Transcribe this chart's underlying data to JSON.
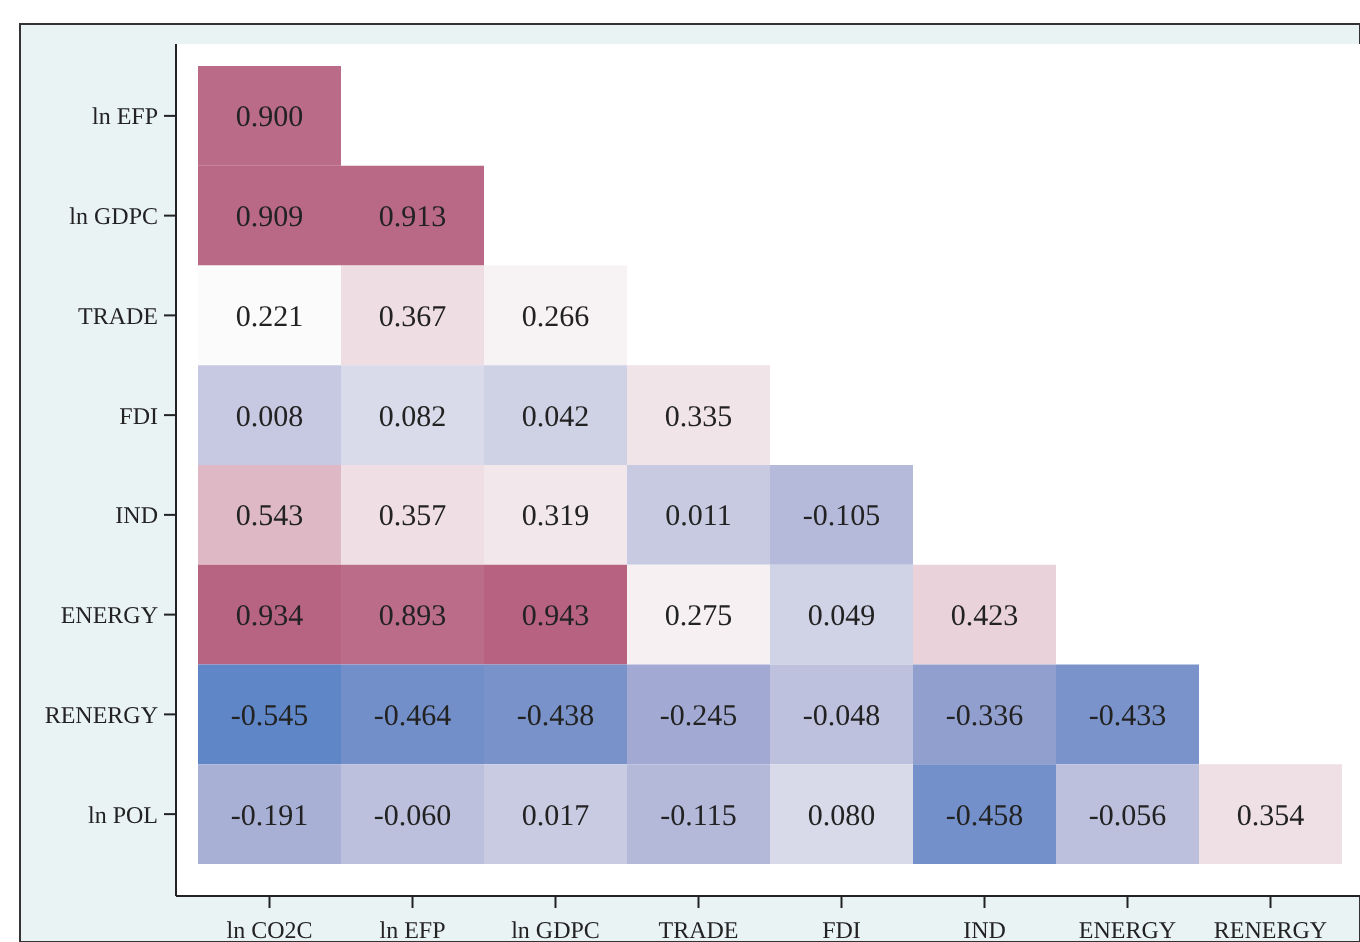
{
  "chart_data": {
    "type": "heatmap",
    "categories": [
      "ln CO2C",
      "ln EFP",
      "ln GDPC",
      "TRADE",
      "FDI",
      "IND",
      "ENERGY",
      "RENERGY"
    ],
    "y_categories": [
      "ln EFP",
      "ln GDPC",
      "TRADE",
      "FDI",
      "IND",
      "ENERGY",
      "RENERGY",
      "ln POL"
    ],
    "cells": [
      [
        0.9,
        null,
        null,
        null,
        null,
        null,
        null,
        null
      ],
      [
        0.909,
        0.913,
        null,
        null,
        null,
        null,
        null,
        null
      ],
      [
        0.221,
        0.367,
        0.266,
        null,
        null,
        null,
        null,
        null
      ],
      [
        0.008,
        0.082,
        0.042,
        0.335,
        null,
        null,
        null,
        null
      ],
      [
        0.543,
        0.357,
        0.319,
        0.011,
        -0.105,
        null,
        null,
        null
      ],
      [
        0.934,
        0.893,
        0.943,
        0.275,
        0.049,
        0.423,
        null,
        null
      ],
      [
        -0.545,
        -0.464,
        -0.438,
        -0.245,
        -0.048,
        -0.336,
        -0.433,
        null
      ],
      [
        -0.191,
        -0.06,
        0.017,
        -0.115,
        0.08,
        -0.458,
        -0.056,
        0.354
      ]
    ],
    "cell_labels": [
      [
        "0.900",
        null,
        null,
        null,
        null,
        null,
        null,
        null
      ],
      [
        "0.909",
        "0.913",
        null,
        null,
        null,
        null,
        null,
        null
      ],
      [
        "0.221",
        "0.367",
        "0.266",
        null,
        null,
        null,
        null,
        null
      ],
      [
        "0.008",
        "0.082",
        "0.042",
        "0.335",
        null,
        null,
        null,
        null
      ],
      [
        "0.543",
        "0.357",
        "0.319",
        "0.011",
        "-0.105",
        null,
        null,
        null
      ],
      [
        "0.934",
        "0.893",
        "0.943",
        "0.275",
        "0.049",
        "0.423",
        null,
        null
      ],
      [
        "-0.545",
        "-0.464",
        "-0.438",
        "-0.245",
        "-0.048",
        "-0.336",
        "-0.433",
        null
      ],
      [
        "-0.191",
        "-0.060",
        "0.017",
        "-0.115",
        "0.080",
        "-0.458",
        "-0.056",
        "0.354"
      ]
    ]
  }
}
